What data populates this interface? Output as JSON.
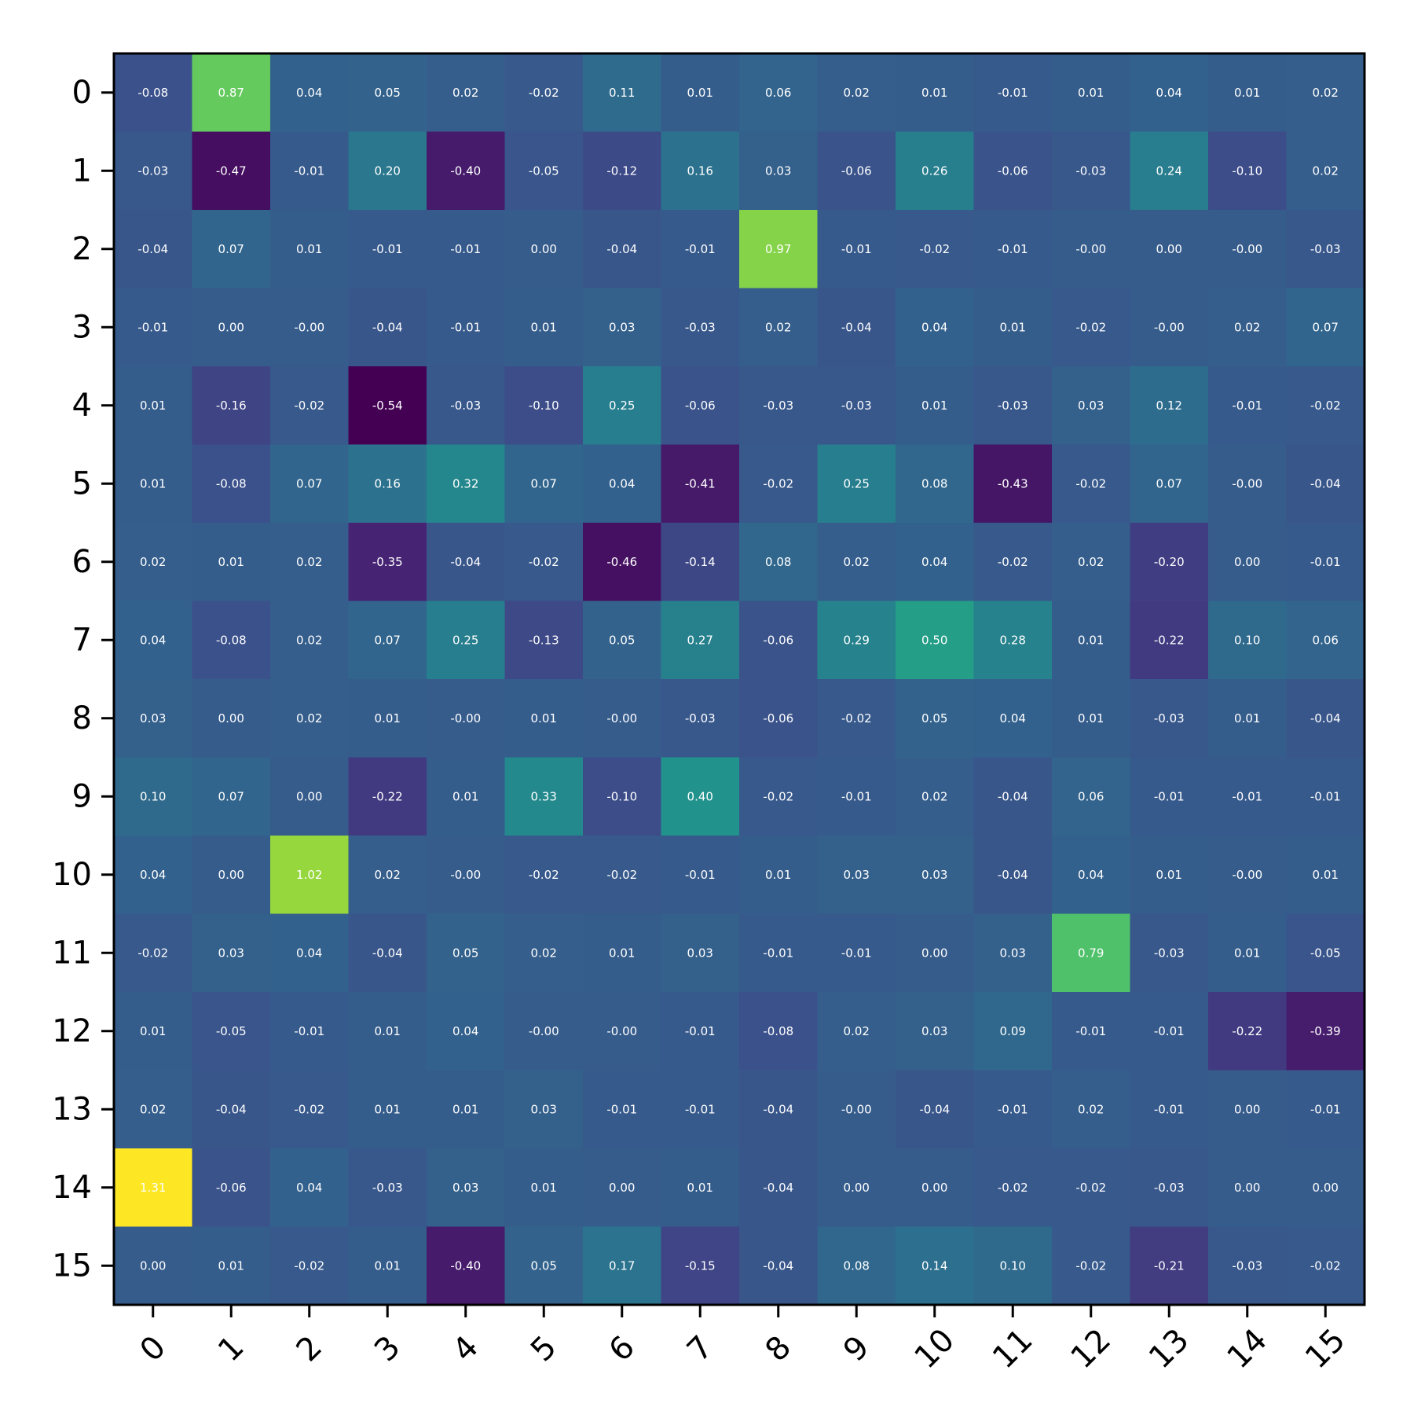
{
  "chart_data": {
    "type": "heatmap",
    "title": "",
    "xlabel": "",
    "ylabel": "",
    "colormap": "viridis",
    "value_range": [
      -0.54,
      1.31
    ],
    "value_format": "2 decimals",
    "cell_label_color": "#ffffff",
    "x_tick_labels": [
      "0",
      "1",
      "2",
      "3",
      "4",
      "5",
      "6",
      "7",
      "8",
      "9",
      "10",
      "11",
      "12",
      "13",
      "14",
      "15"
    ],
    "y_tick_labels": [
      "0",
      "1",
      "2",
      "3",
      "4",
      "5",
      "6",
      "7",
      "8",
      "9",
      "10",
      "11",
      "12",
      "13",
      "14",
      "15"
    ],
    "x_tick_rotation_deg": 45,
    "grid": false,
    "colorbar": false,
    "values": [
      [
        -0.08,
        0.87,
        0.04,
        0.05,
        0.02,
        -0.02,
        0.11,
        0.01,
        0.06,
        0.02,
        0.01,
        -0.01,
        0.01,
        0.04,
        0.01,
        0.02
      ],
      [
        -0.03,
        -0.47,
        -0.01,
        0.2,
        -0.4,
        -0.05,
        -0.12,
        0.16,
        0.03,
        -0.06,
        0.26,
        -0.06,
        -0.03,
        0.24,
        -0.1,
        0.02
      ],
      [
        -0.04,
        0.07,
        0.01,
        -0.01,
        -0.01,
        0.0,
        -0.04,
        -0.01,
        0.97,
        -0.01,
        -0.02,
        -0.01,
        -0.0,
        0.0,
        -0.0,
        -0.03
      ],
      [
        -0.01,
        0.0,
        -0.0,
        -0.04,
        -0.01,
        0.01,
        0.03,
        -0.03,
        0.02,
        -0.04,
        0.04,
        0.01,
        -0.02,
        -0.0,
        0.02,
        0.07
      ],
      [
        0.01,
        -0.16,
        -0.02,
        -0.54,
        -0.03,
        -0.1,
        0.25,
        -0.06,
        -0.03,
        -0.03,
        0.01,
        -0.03,
        0.03,
        0.12,
        -0.01,
        -0.02
      ],
      [
        0.01,
        -0.08,
        0.07,
        0.16,
        0.32,
        0.07,
        0.04,
        -0.41,
        -0.02,
        0.25,
        0.08,
        -0.43,
        -0.02,
        0.07,
        -0.0,
        -0.04
      ],
      [
        0.02,
        0.01,
        0.02,
        -0.35,
        -0.04,
        -0.02,
        -0.46,
        -0.14,
        0.08,
        0.02,
        0.04,
        -0.02,
        0.02,
        -0.2,
        0.0,
        -0.01
      ],
      [
        0.04,
        -0.08,
        0.02,
        0.07,
        0.25,
        -0.13,
        0.05,
        0.27,
        -0.06,
        0.29,
        0.5,
        0.28,
        0.01,
        -0.22,
        0.1,
        0.06
      ],
      [
        0.03,
        0.0,
        0.02,
        0.01,
        -0.0,
        0.01,
        -0.0,
        -0.03,
        -0.06,
        -0.02,
        0.05,
        0.04,
        0.01,
        -0.03,
        0.01,
        -0.04
      ],
      [
        0.1,
        0.07,
        0.0,
        -0.22,
        0.01,
        0.33,
        -0.1,
        0.4,
        -0.02,
        -0.01,
        0.02,
        -0.04,
        0.06,
        -0.01,
        -0.01,
        -0.01
      ],
      [
        0.04,
        0.0,
        1.02,
        0.02,
        -0.0,
        -0.02,
        -0.02,
        -0.01,
        0.01,
        0.03,
        0.03,
        -0.04,
        0.04,
        0.01,
        -0.0,
        0.01
      ],
      [
        -0.02,
        0.03,
        0.04,
        -0.04,
        0.05,
        0.02,
        0.01,
        0.03,
        -0.01,
        -0.01,
        0.0,
        0.03,
        0.79,
        -0.03,
        0.01,
        -0.05
      ],
      [
        0.01,
        -0.05,
        -0.01,
        0.01,
        0.04,
        -0.0,
        -0.0,
        -0.01,
        -0.08,
        0.02,
        0.03,
        0.09,
        -0.01,
        -0.01,
        -0.22,
        -0.39
      ],
      [
        0.02,
        -0.04,
        -0.02,
        0.01,
        0.01,
        0.03,
        -0.01,
        -0.01,
        -0.04,
        -0.0,
        -0.04,
        -0.01,
        0.02,
        -0.01,
        0.0,
        -0.01
      ],
      [
        1.31,
        -0.06,
        0.04,
        -0.03,
        0.03,
        0.01,
        0.0,
        0.01,
        -0.04,
        0.0,
        0.0,
        -0.02,
        -0.02,
        -0.03,
        0.0,
        0.0
      ],
      [
        0.0,
        0.01,
        -0.02,
        0.01,
        -0.4,
        0.05,
        0.17,
        -0.15,
        -0.04,
        0.08,
        0.14,
        0.1,
        -0.02,
        -0.21,
        -0.03,
        -0.02
      ]
    ]
  }
}
